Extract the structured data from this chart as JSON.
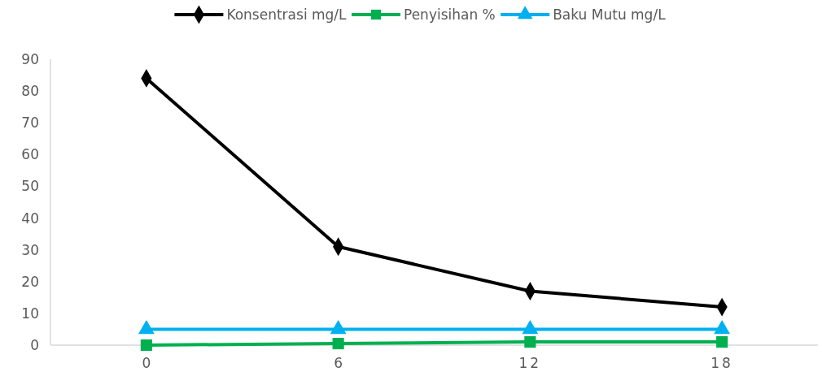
{
  "chart_data": {
    "type": "line",
    "categories": [
      "0",
      "6",
      "12",
      "18"
    ],
    "series": [
      {
        "name": "Konsentrasi mg/L",
        "color": "#000000",
        "marker": "diamond",
        "values": [
          84,
          31,
          17,
          12
        ]
      },
      {
        "name": "Penyisihan %",
        "color": "#00b050",
        "marker": "square",
        "values": [
          0,
          0.5,
          1,
          1
        ]
      },
      {
        "name": "Baku Mutu mg/L",
        "color": "#00b0f0",
        "marker": "triangle",
        "values": [
          5,
          5,
          5,
          5
        ]
      }
    ],
    "ylim": [
      0,
      90
    ],
    "yticks": [
      0,
      10,
      20,
      30,
      40,
      50,
      60,
      70,
      80,
      90
    ],
    "legend": "top",
    "grid": false
  }
}
